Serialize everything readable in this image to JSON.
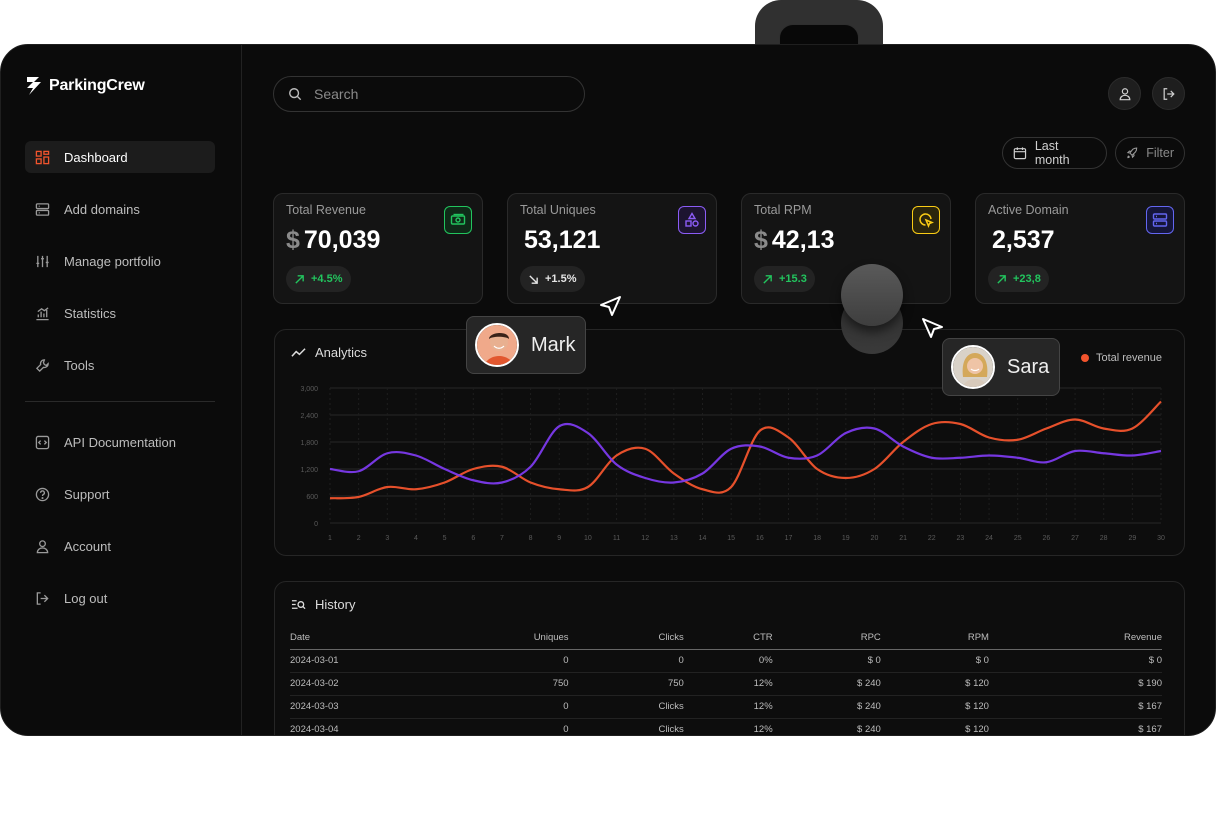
{
  "brand": {
    "name": "ParkingCrew"
  },
  "sidebar": {
    "items": [
      {
        "label": "Dashboard",
        "icon": "grid-icon",
        "active": true
      },
      {
        "label": "Add domains",
        "icon": "server-icon"
      },
      {
        "label": "Manage portfolio",
        "icon": "sliders-icon"
      },
      {
        "label": "Statistics",
        "icon": "bar-chart-icon"
      },
      {
        "label": "Tools",
        "icon": "wrench-icon"
      }
    ],
    "secondary": [
      {
        "label": "API Documentation",
        "icon": "code-icon"
      },
      {
        "label": "Support",
        "icon": "help-icon"
      },
      {
        "label": "Account",
        "icon": "user-icon"
      },
      {
        "label": "Log out",
        "icon": "logout-icon"
      }
    ]
  },
  "search": {
    "placeholder": "Search"
  },
  "toolbar": {
    "period_label": "Last month",
    "filter_label": "Filter"
  },
  "cards": [
    {
      "label": "Total Revenue",
      "currency": "$",
      "value": "70,039",
      "change": "+4.5%",
      "trend": "up",
      "icon": "money-icon",
      "accent": "#22c55e"
    },
    {
      "label": "Total Uniques",
      "currency": "",
      "value": "53,121",
      "change": "+1.5%",
      "trend": "down",
      "icon": "shapes-icon",
      "accent": "#8b5cf6"
    },
    {
      "label": "Total RPM",
      "currency": "$",
      "value": "42,13",
      "change": "+15.3",
      "trend": "up",
      "icon": "click-icon",
      "accent": "#facc15"
    },
    {
      "label": "Active Domain",
      "currency": "",
      "value": "2,537",
      "change": "+23,8",
      "trend": "up",
      "icon": "server-icon",
      "accent": "#6366f1"
    }
  ],
  "analytics": {
    "title": "Analytics",
    "legend": "Total revenue"
  },
  "chart_data": {
    "type": "line",
    "x": [
      1,
      2,
      3,
      4,
      5,
      6,
      7,
      8,
      9,
      10,
      11,
      12,
      13,
      14,
      15,
      16,
      17,
      18,
      19,
      20,
      21,
      22,
      23,
      24,
      25,
      26,
      27,
      28,
      29,
      30
    ],
    "ylim": [
      0,
      3000
    ],
    "yticks": [
      "3,000",
      "2,400",
      "1,800",
      "1,200",
      "600",
      "0"
    ],
    "series": [
      {
        "name": "Total revenue",
        "color": "#f2542d",
        "values": [
          550,
          580,
          800,
          750,
          900,
          1200,
          1250,
          900,
          750,
          800,
          1500,
          1650,
          1100,
          750,
          800,
          2050,
          1900,
          1200,
          1000,
          1200,
          1800,
          2200,
          2200,
          1900,
          1850,
          2100,
          2300,
          2100,
          2100,
          2700
        ]
      },
      {
        "name": "",
        "color": "#7c3aed",
        "values": [
          1200,
          1150,
          1550,
          1500,
          1200,
          950,
          900,
          1250,
          2150,
          2000,
          1300,
          1000,
          900,
          1100,
          1650,
          1700,
          1450,
          1500,
          2000,
          2100,
          1700,
          1450,
          1450,
          1500,
          1450,
          1350,
          1600,
          1550,
          1500,
          1600
        ]
      }
    ],
    "grid": true
  },
  "history": {
    "title": "History",
    "columns": [
      "Date",
      "Uniques",
      "Clicks",
      "CTR",
      "RPC",
      "RPM",
      "Revenue"
    ],
    "rows": [
      [
        "2024-03-01",
        "0",
        "0",
        "0%",
        "$ 0",
        "$ 0",
        "$ 0"
      ],
      [
        "2024-03-02",
        "750",
        "750",
        "12%",
        "$ 240",
        "$ 120",
        "$ 190"
      ],
      [
        "2024-03-03",
        "0",
        "Clicks",
        "12%",
        "$ 240",
        "$ 120",
        "$ 167"
      ],
      [
        "2024-03-04",
        "0",
        "Clicks",
        "12%",
        "$ 240",
        "$ 120",
        "$ 167"
      ]
    ]
  },
  "collaborators": [
    {
      "name": "Mark"
    },
    {
      "name": "Sara"
    }
  ]
}
